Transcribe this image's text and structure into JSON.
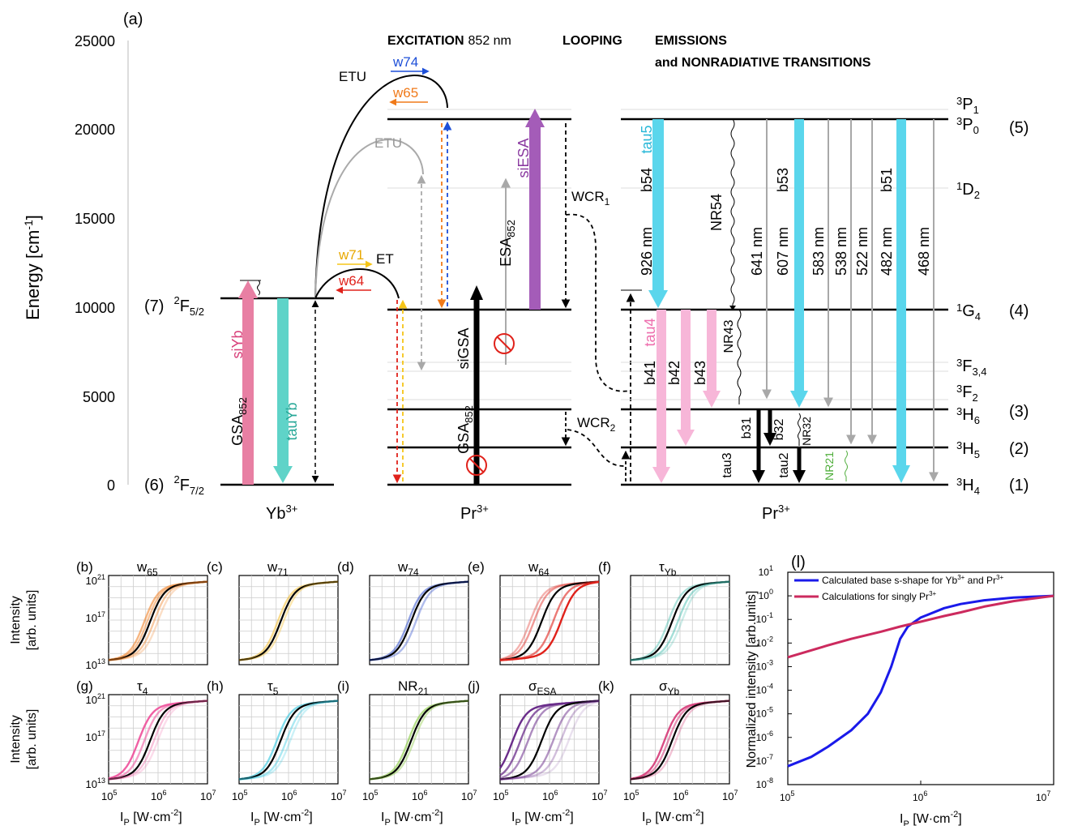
{
  "diagram": {
    "panel_label": "(a)",
    "y_axis": {
      "label_base": "Energy [cm",
      "label_sup": "-1",
      "label_end": "]",
      "ticks": [
        "0",
        "5000",
        "10000",
        "15000",
        "20000",
        "25000"
      ]
    },
    "headers": {
      "excitation_bold": "EXCITATION",
      "excitation_wl": "852 nm",
      "looping": "LOOPING",
      "emissions_1": "EMISSIONS",
      "emissions_2": "and NONRADIATIVE TRANSITIONS"
    },
    "yb_levels": {
      "upper_num": "(7)",
      "upper_term": "2",
      "upper_term_main": "F",
      "upper_sub": "5/2",
      "lower_num": "(6)",
      "lower_term": "2",
      "lower_term_main": "F",
      "lower_sub": "7/2"
    },
    "ion_labels": {
      "yb": "Yb",
      "yb_sup": "3+",
      "pr1": "Pr",
      "pr1_sup": "3+",
      "pr2": "Pr",
      "pr2_sup": "3+"
    },
    "pr_levels": [
      {
        "sup": "3",
        "main": "P",
        "sub": "1",
        "num": ""
      },
      {
        "sup": "3",
        "main": "P",
        "sub": "0",
        "num": "(5)"
      },
      {
        "sup": "1",
        "main": "D",
        "sub": "2",
        "num": ""
      },
      {
        "sup": "1",
        "main": "G",
        "sub": "4",
        "num": "(4)"
      },
      {
        "sup": "3",
        "main": "F",
        "sub": "3,4",
        "num": ""
      },
      {
        "sup": "3",
        "main": "F",
        "sub": "2",
        "num": ""
      },
      {
        "sup": "3",
        "main": "H",
        "sub": "6",
        "num": "(3)"
      },
      {
        "sup": "3",
        "main": "H",
        "sub": "5",
        "num": "(2)"
      },
      {
        "sup": "3",
        "main": "H",
        "sub": "4",
        "num": "(1)"
      }
    ],
    "transitions": {
      "gsa": "GSA",
      "gsa_sub": "852",
      "siyb": "siYb",
      "tauyb": "tauYb",
      "etu1": "ETU",
      "etu2": "ETU",
      "et": "ET",
      "w74": "w74",
      "w65": "w65",
      "w71": "w71",
      "w64": "w64",
      "sigsa": "siGSA",
      "gsa2": "GSA",
      "gsa2_sub": "852",
      "esa": "ESA",
      "esa_sub": "852",
      "siesa": "siESA",
      "wcr1": "WCR",
      "wcr1_sub": "1",
      "wcr2": "WCR",
      "wcr2_sub": "2",
      "nm926": "926 nm",
      "b54": "b54",
      "tau5": "tau5",
      "nr54": "NR54",
      "nm641": "641 nm",
      "nm607": "607 nm",
      "b53": "b53",
      "nm583": "583 nm",
      "nm538": "538 nm",
      "nm522": "522 nm",
      "nm482": "482 nm",
      "b51": "b51",
      "nm468": "468 nm",
      "tau4": "tau4",
      "b41": "b41",
      "b42": "b42",
      "b43": "b43",
      "nr43": "NR43",
      "b31": "b31",
      "b32": "b32",
      "nr32": "NR32",
      "tau3": "tau3",
      "tau2": "tau2",
      "nr21": "NR21"
    }
  },
  "colors": {
    "siyb": "#e87fa3",
    "tauyb": "#5fd3c8",
    "cyan": "#5ad6ec",
    "pink": "#f7b6d8",
    "purple": "#a45cb8",
    "gray": "#a8a8a8",
    "red": "#e0221b",
    "orange": "#f07a1a",
    "yellow": "#f5c518",
    "blue": "#1d4fd8",
    "green": "#4fae3b"
  },
  "small_panels": {
    "y_title_1": "Intensity",
    "y_title_2": "[arb. units]",
    "y_ticks": [
      {
        "base": "10",
        "exp": "21"
      },
      {
        "base": "10",
        "exp": "17"
      },
      {
        "base": "10",
        "exp": "13"
      }
    ],
    "x_ticks": [
      {
        "base": "10",
        "exp": "5"
      },
      {
        "base": "10",
        "exp": "6"
      },
      {
        "base": "10",
        "exp": "7"
      }
    ],
    "x_title_main": "I",
    "x_title_sub": "P",
    "x_title_rest": " [W·cm",
    "x_title_sup": "-2",
    "x_title_end": "]",
    "panels": [
      {
        "label": "(b)",
        "param": "w",
        "param_sub": "65",
        "color": "#f07a1a"
      },
      {
        "label": "(c)",
        "param": "w",
        "param_sub": "71",
        "color": "#f5b818"
      },
      {
        "label": "(d)",
        "param": "w",
        "param_sub": "74",
        "color": "#1d3fc8"
      },
      {
        "label": "(e)",
        "param": "w",
        "param_sub": "64",
        "color": "#e0221b"
      },
      {
        "label": "(f)",
        "param": "τ",
        "param_sub": "Yb",
        "color": "#36b8a8"
      },
      {
        "label": "(g)",
        "param": "τ",
        "param_sub": "4",
        "color": "#ee4f9a"
      },
      {
        "label": "(h)",
        "param": "τ",
        "param_sub": "5",
        "color": "#2ec7e0"
      },
      {
        "label": "(i)",
        "param": "NR",
        "param_sub": "21",
        "color": "#86c93b"
      },
      {
        "label": "(j)",
        "param": "σ",
        "param_sub": "ESA",
        "color": "#6a2c8a"
      },
      {
        "label": "(k)",
        "param": "σ",
        "param_sub": "Yb",
        "color": "#d63a78"
      }
    ]
  },
  "chart_data": {
    "type": "line",
    "panel_label": "(l)",
    "xlabel": "I_P [W·cm^-2]",
    "ylabel": "Normalized intensity [arb.units]",
    "x_scale": "log",
    "y_scale": "log",
    "xlim": [
      100000,
      10000000
    ],
    "ylim": [
      1e-08,
      10
    ],
    "x_ticks": [
      {
        "base": "10",
        "exp": "5"
      },
      {
        "base": "10",
        "exp": "6"
      },
      {
        "base": "10",
        "exp": "7"
      }
    ],
    "y_ticks": [
      {
        "base": "10",
        "exp": "1"
      },
      {
        "base": "10",
        "exp": "0"
      },
      {
        "base": "10",
        "exp": "-1"
      },
      {
        "base": "10",
        "exp": "-2"
      },
      {
        "base": "10",
        "exp": "-3"
      },
      {
        "base": "10",
        "exp": "-4"
      },
      {
        "base": "10",
        "exp": "-5"
      },
      {
        "base": "10",
        "exp": "-6"
      },
      {
        "base": "10",
        "exp": "-7"
      },
      {
        "base": "10",
        "exp": "-8"
      }
    ],
    "ylabel_text": "Normalized intensity [arb.units]",
    "xlabel_main": "I",
    "xlabel_sub": "P",
    "xlabel_rest": " [W·cm",
    "xlabel_sup": "-2",
    "xlabel_end": "]",
    "legend": "top-left",
    "series": [
      {
        "name": "Calculated base s-shape for Yb",
        "name_sup": "3+",
        "name_end": " and Pr",
        "name_sup2": "3+",
        "color": "#1a1aea",
        "x": [
          100000,
          150000,
          200000,
          300000,
          400000,
          500000,
          600000,
          700000,
          800000,
          900000,
          1000000,
          1500000,
          2000000,
          3000000,
          5000000,
          10000000
        ],
        "y": [
          6e-08,
          1.5e-07,
          4e-07,
          2e-06,
          1e-05,
          8e-05,
          0.001,
          0.015,
          0.05,
          0.08,
          0.12,
          0.3,
          0.45,
          0.65,
          0.85,
          1.0
        ]
      },
      {
        "name": "Calculations for singly Pr",
        "name_sup": "3+",
        "name_end": "",
        "name_sup2": "",
        "color": "#cc2a5e",
        "x": [
          100000,
          200000,
          300000,
          500000,
          700000,
          1000000,
          1500000,
          2000000,
          3000000,
          5000000,
          10000000
        ],
        "y": [
          0.0025,
          0.008,
          0.015,
          0.03,
          0.05,
          0.08,
          0.14,
          0.2,
          0.35,
          0.6,
          1.0
        ]
      }
    ]
  }
}
